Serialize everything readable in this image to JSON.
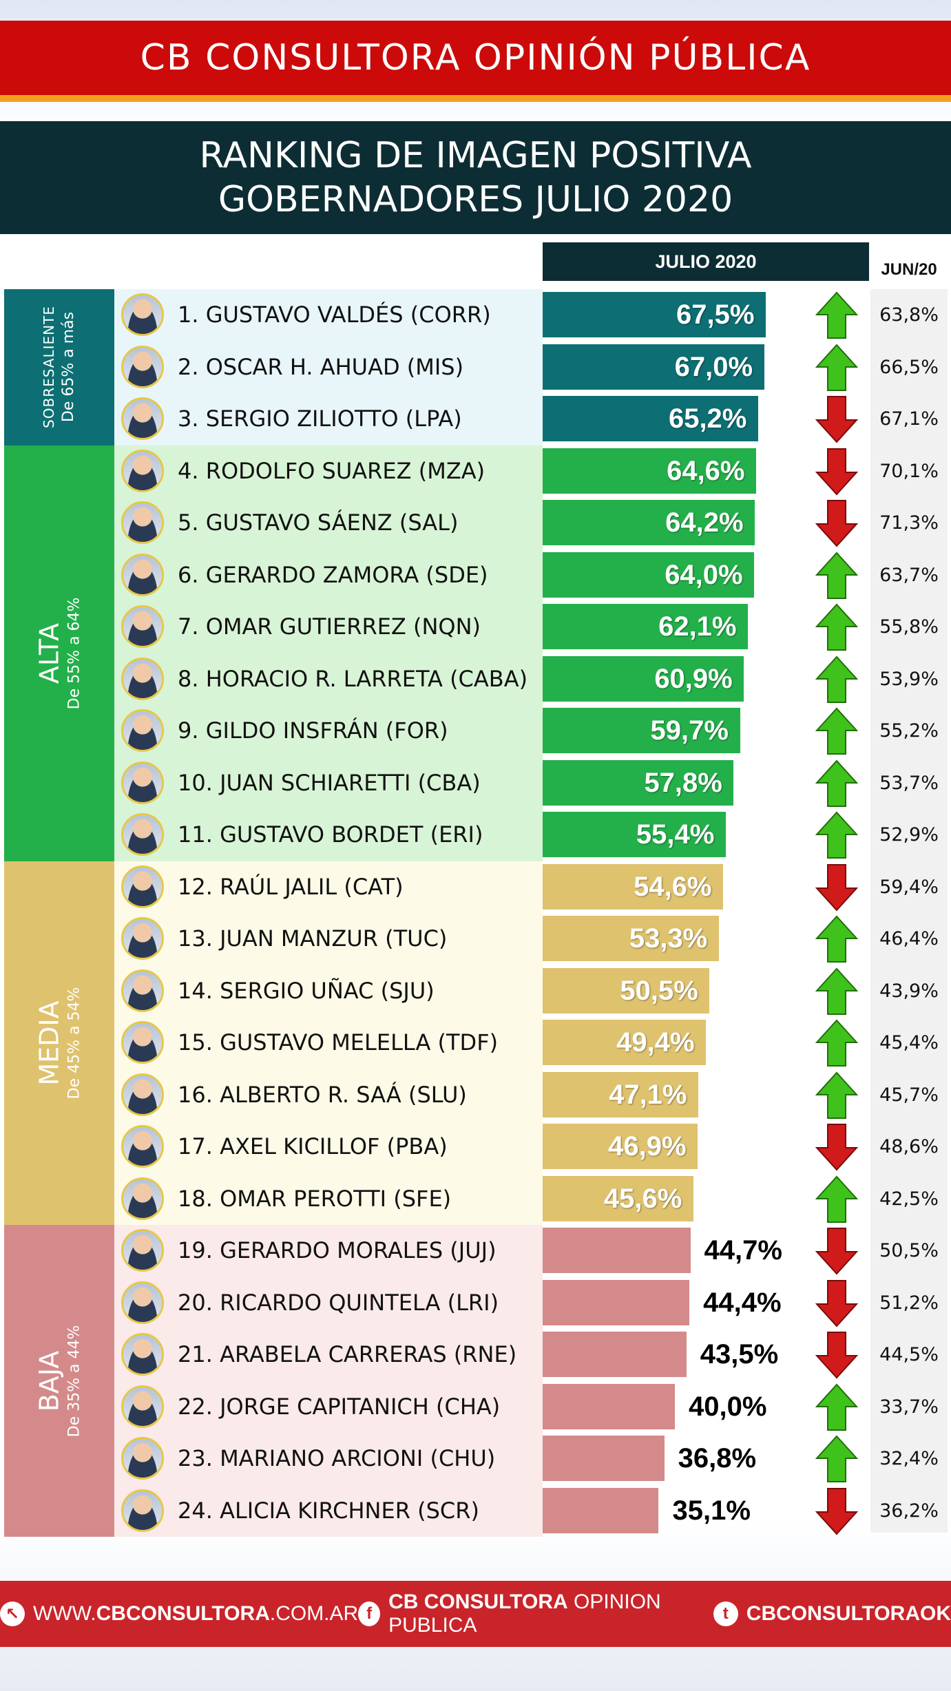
{
  "header": {
    "brand": "CB CONSULTORA OPINIÓN PÚBLICA",
    "title_line1": "RANKING DE IMAGEN POSITIVA",
    "title_line2": "GOBERNADORES JULIO 2020",
    "col_current": "JULIO 2020",
    "col_previous": "JUN/20"
  },
  "bands": [
    {
      "key": "sob",
      "title": "SOBRESALIENTE",
      "range": "De 65% a más",
      "bg": "#e8f6fa",
      "side": "#0d6f73",
      "bar": "#0d6f73"
    },
    {
      "key": "alta",
      "title": "ALTA",
      "range": "De 55% a  64%",
      "bg": "#d8f4d6",
      "side": "#23b04a",
      "bar": "#23b04a"
    },
    {
      "key": "media",
      "title": "MEDIA",
      "range": "De 45% a  54%",
      "bg": "#fdfbe8",
      "side": "#dfc26e",
      "bar": "#dfc26e"
    },
    {
      "key": "baja",
      "title": "BAJA",
      "range": "De 35% a  44%",
      "bg": "#fbeaea",
      "side": "#d48a8a",
      "bar": "#d48a8a"
    }
  ],
  "chart_data": {
    "type": "bar",
    "title": "RANKING DE IMAGEN POSITIVA GOBERNADORES JULIO 2020",
    "categories": [
      "1. GUSTAVO VALDÉS  (CORR)",
      "2. OSCAR H. AHUAD  (MIS)",
      "3. SERGIO ZILIOTTO (LPA)",
      "4. RODOLFO SUAREZ (MZA)",
      "5. GUSTAVO SÁENZ (SAL)",
      "6. GERARDO ZAMORA (SDE)",
      "7. OMAR GUTIERREZ (NQN)",
      "8. HORACIO R. LARRETA (CABA)",
      "9. GILDO INSFRÁN (FOR)",
      "10. JUAN SCHIARETTI (CBA)",
      "11. GUSTAVO BORDET (ERI)",
      "12. RAÚL JALIL (CAT)",
      "13. JUAN MANZUR (TUC)",
      "14. SERGIO UÑAC (SJU)",
      "15. GUSTAVO MELELLA (TDF)",
      "16. ALBERTO R. SAÁ (SLU)",
      "17.  AXEL KICILLOF (PBA)",
      "18. OMAR PEROTTI (SFE)",
      "19. GERARDO MORALES (JUJ)",
      "20. RICARDO QUINTELA (LRI)",
      "21. ARABELA CARRERAS (RNE)",
      "22. JORGE CAPITANICH (CHA)",
      "23. MARIANO ARCIONI (CHU)",
      "24. ALICIA KIRCHNER (SCR)"
    ],
    "series": [
      {
        "name": "JULIO 2020",
        "values": [
          67.5,
          67.0,
          65.2,
          64.6,
          64.2,
          64.0,
          62.1,
          60.9,
          59.7,
          57.8,
          55.4,
          54.6,
          53.3,
          50.5,
          49.4,
          47.1,
          46.9,
          45.6,
          44.7,
          44.4,
          43.5,
          40.0,
          36.8,
          35.1
        ]
      },
      {
        "name": "JUN/20",
        "values": [
          63.8,
          66.5,
          67.1,
          70.1,
          71.3,
          63.7,
          55.8,
          53.9,
          55.2,
          53.7,
          52.9,
          59.4,
          46.4,
          43.9,
          45.4,
          45.7,
          48.6,
          42.5,
          50.5,
          51.2,
          44.5,
          33.7,
          32.4,
          36.2
        ]
      }
    ],
    "labels_current": [
      "67,5%",
      "67,0%",
      "65,2%",
      "64,6%",
      "64,2%",
      "64,0%",
      "62,1%",
      "60,9%",
      "59,7%",
      "57,8%",
      "55,4%",
      "54,6%",
      "53,3%",
      "50,5%",
      "49,4%",
      "47,1%",
      "46,9%",
      "45,6%",
      "44,7%",
      "44,4%",
      "43,5%",
      "40,0%",
      "36,8%",
      "35,1%"
    ],
    "labels_previous": [
      "63,8%",
      "66,5%",
      "67,1%",
      "70,1%",
      "71,3%",
      "63,7%",
      "55,8%",
      "53,9%",
      "55,2%",
      "53,7%",
      "52,9%",
      "59,4%",
      "46,4%",
      "43,9%",
      "45,4%",
      "45,7%",
      "48,6%",
      "42,5%",
      "50,5%",
      "51,2%",
      "44,5%",
      "33,7%",
      "32,4%",
      "36,2%"
    ],
    "trend": [
      "up",
      "up",
      "down",
      "down",
      "down",
      "up",
      "up",
      "up",
      "up",
      "up",
      "up",
      "down",
      "up",
      "up",
      "up",
      "up",
      "down",
      "up",
      "down",
      "down",
      "down",
      "up",
      "up",
      "down"
    ],
    "band_of_row": [
      "sob",
      "sob",
      "sob",
      "alta",
      "alta",
      "alta",
      "alta",
      "alta",
      "alta",
      "alta",
      "alta",
      "media",
      "media",
      "media",
      "media",
      "media",
      "media",
      "media",
      "baja",
      "baja",
      "baja",
      "baja",
      "baja",
      "baja"
    ],
    "colors": {
      "up": "#3fc21b",
      "down": "#d11a1a"
    }
  },
  "footer": {
    "web_prefix": "WWW.",
    "web_bold": "CBCONSULTORA",
    "web_suffix": ".COM.AR",
    "fb_bold": "CB CONSULTORA",
    "fb_light": "OPINION PUBLICA",
    "tw": "CBCONSULTORAOK"
  }
}
